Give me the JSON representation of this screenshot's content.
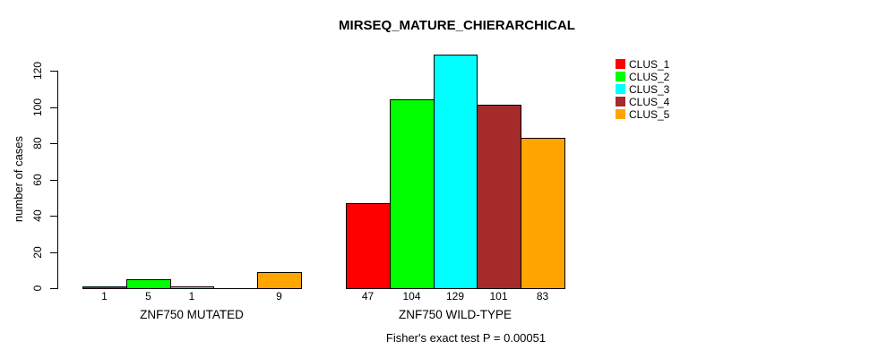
{
  "title": "MIRSEQ_MATURE_CHIERARCHICAL",
  "chart_data": {
    "type": "bar",
    "title": "MIRSEQ_MATURE_CHIERARCHICAL",
    "ylabel": "number of cases",
    "xlabel": "",
    "ylim": [
      0,
      129
    ],
    "y_ticks": [
      0,
      20,
      40,
      60,
      80,
      100,
      120
    ],
    "grid": false,
    "legend_position": "top-right",
    "annotation": "Fisher's exact test P = 0.00051",
    "series": [
      {
        "name": "CLUS_1",
        "color": "#FF0000"
      },
      {
        "name": "CLUS_2",
        "color": "#00FF00"
      },
      {
        "name": "CLUS_3",
        "color": "#00FFFF"
      },
      {
        "name": "CLUS_4",
        "color": "#A52A2A"
      },
      {
        "name": "CLUS_5",
        "color": "#FFA500"
      }
    ],
    "groups": [
      {
        "label": "ZNF750 MUTATED",
        "values": [
          1,
          5,
          1,
          0,
          9
        ],
        "bar_labels": [
          "1",
          "5",
          "1",
          "",
          "9"
        ]
      },
      {
        "label": "ZNF750 WILD-TYPE",
        "values": [
          47,
          104,
          129,
          101,
          83
        ],
        "bar_labels": [
          "47",
          "104",
          "129",
          "101",
          "83"
        ]
      }
    ]
  }
}
